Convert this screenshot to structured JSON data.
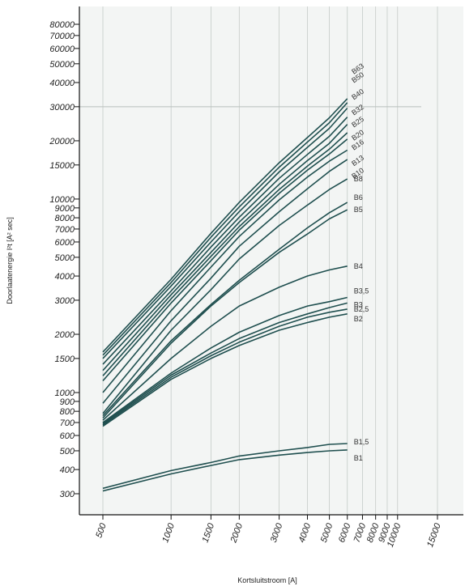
{
  "chart_data": {
    "type": "line",
    "title": "",
    "xlabel": "Kortsluitstroom [A]",
    "ylabel": "Doorlaatenergie I²t [A² sec]",
    "x_scale": "log",
    "y_scale": "log",
    "xlim": [
      500,
      15000
    ],
    "ylim": [
      250,
      100000
    ],
    "grid": true,
    "x_ticks": [
      500,
      1000,
      1500,
      2000,
      3000,
      4000,
      5000,
      6000,
      7000,
      8000,
      9000,
      10000,
      15000
    ],
    "y_ticks": [
      300,
      400,
      500,
      600,
      700,
      800,
      900,
      1000,
      1500,
      2000,
      3000,
      4000,
      5000,
      6000,
      7000,
      8000,
      9000,
      10000,
      15000,
      20000,
      30000,
      40000,
      50000,
      60000,
      70000,
      80000
    ],
    "x": [
      500,
      1000,
      1500,
      2000,
      3000,
      4000,
      5000,
      6000
    ],
    "series": [
      {
        "name": "B1",
        "values": [
          310,
          380,
          420,
          450,
          475,
          490,
          500,
          505
        ]
      },
      {
        "name": "B1,5",
        "values": [
          320,
          395,
          435,
          470,
          500,
          520,
          540,
          545
        ]
      },
      {
        "name": "B2",
        "values": [
          670,
          1170,
          1500,
          1750,
          2100,
          2300,
          2450,
          2550
        ]
      },
      {
        "name": "B2,5",
        "values": [
          680,
          1200,
          1550,
          1820,
          2200,
          2450,
          2600,
          2700
        ]
      },
      {
        "name": "B3",
        "values": [
          690,
          1230,
          1600,
          1900,
          2300,
          2550,
          2750,
          2900
        ]
      },
      {
        "name": "B3,5",
        "values": [
          700,
          1260,
          1700,
          2050,
          2500,
          2800,
          2950,
          3100
        ]
      },
      {
        "name": "B4",
        "values": [
          720,
          1500,
          2200,
          2800,
          3500,
          4000,
          4300,
          4500
        ]
      },
      {
        "name": "B5",
        "values": [
          740,
          1800,
          2800,
          3700,
          5300,
          6600,
          7900,
          8800
        ]
      },
      {
        "name": "B6",
        "values": [
          760,
          1850,
          2850,
          3800,
          5500,
          7100,
          8500,
          9600
        ]
      },
      {
        "name": "B8",
        "values": [
          780,
          2100,
          3400,
          4900,
          7300,
          9300,
          11200,
          12700
        ]
      },
      {
        "name": "B10",
        "values": [
          880,
          2350,
          3900,
          5700,
          8600,
          11300,
          13900,
          16000
        ]
      },
      {
        "name": "B13",
        "values": [
          1000,
          2650,
          4450,
          6400,
          9900,
          13000,
          15700,
          17900
        ]
      },
      {
        "name": "B16",
        "values": [
          1150,
          2900,
          4800,
          6900,
          10700,
          14100,
          17100,
          20400
        ]
      },
      {
        "name": "B20",
        "values": [
          1220,
          3050,
          5050,
          7200,
          11200,
          14800,
          18100,
          22000
        ]
      },
      {
        "name": "B25",
        "values": [
          1300,
          3200,
          5300,
          7600,
          11900,
          15800,
          19400,
          24300
        ]
      },
      {
        "name": "B32",
        "values": [
          1400,
          3350,
          5650,
          8050,
          12800,
          17000,
          21100,
          26500
        ]
      },
      {
        "name": "B40",
        "values": [
          1500,
          3550,
          6000,
          8600,
          13800,
          18500,
          23200,
          29500
        ]
      },
      {
        "name": "B50",
        "values": [
          1560,
          3700,
          6350,
          9100,
          14600,
          19700,
          24800,
          31500
        ]
      },
      {
        "name": "B63",
        "values": [
          1620,
          3850,
          6650,
          9600,
          15400,
          20800,
          26300,
          33000
        ]
      }
    ],
    "colors": {
      "line": "#1f4f4f",
      "plot_bg": "#f3f5f4",
      "grid": "#c5cbc8",
      "axis": "#111111"
    }
  },
  "labels": {
    "ylabel": "Doorlaatenergie I²t [A² sec]",
    "xlabel": "Kortsluitstroom [A]"
  }
}
